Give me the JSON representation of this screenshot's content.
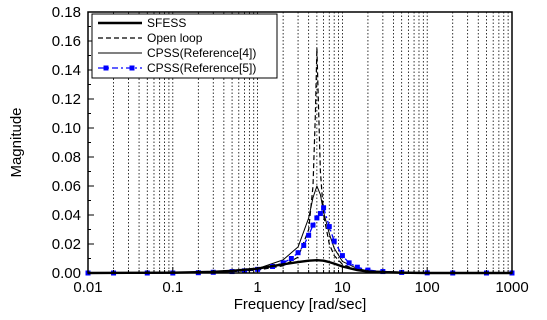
{
  "chart_data": {
    "type": "line",
    "xlabel": "Frequency [rad/sec]",
    "ylabel": "Magnitude",
    "x_scale": "log",
    "xlim": [
      0.01,
      1000
    ],
    "ylim": [
      0,
      0.18
    ],
    "x_ticks": [
      0.01,
      0.1,
      1,
      10,
      100,
      1000
    ],
    "x_tick_labels": [
      "0.01",
      "0.1",
      "1",
      "10",
      "100",
      "1000"
    ],
    "y_ticks": [
      0,
      0.02,
      0.04,
      0.06,
      0.08,
      0.1,
      0.12,
      0.14,
      0.16,
      0.18
    ],
    "y_tick_labels": [
      "0.00",
      "0.02",
      "0.04",
      "0.06",
      "0.08",
      "0.10",
      "0.12",
      "0.14",
      "0.16",
      "0.18"
    ],
    "grid": "vertical dotted at log decades",
    "legend_position": "top-left",
    "series": [
      {
        "name": "SFESS",
        "style": "thick-solid",
        "color": "#000000",
        "x": [
          0.01,
          0.1,
          0.3,
          0.5,
          1,
          2,
          3,
          4,
          5,
          6,
          7,
          8,
          10,
          15,
          20,
          50,
          100,
          1000
        ],
        "y": [
          0,
          0.0002,
          0.0008,
          0.0015,
          0.003,
          0.006,
          0.0075,
          0.0085,
          0.0088,
          0.0085,
          0.0075,
          0.0065,
          0.0045,
          0.002,
          0.001,
          0.0002,
          0,
          0
        ]
      },
      {
        "name": "Open loop",
        "style": "dashed",
        "color": "#000000",
        "x": [
          0.01,
          0.1,
          0.5,
          1,
          2,
          3,
          4,
          4.5,
          4.8,
          5,
          5.2,
          5.5,
          6,
          7,
          8,
          10,
          15,
          20,
          100,
          1000
        ],
        "y": [
          0,
          0,
          0.001,
          0.002,
          0.005,
          0.011,
          0.03,
          0.06,
          0.11,
          0.155,
          0.12,
          0.07,
          0.04,
          0.02,
          0.012,
          0.006,
          0.002,
          0.001,
          0,
          0
        ]
      },
      {
        "name": "CPSS(Reference[4])",
        "style": "thin-solid",
        "color": "#000000",
        "x": [
          0.01,
          0.1,
          0.5,
          1,
          2,
          3,
          4,
          4.5,
          5,
          5.5,
          6,
          7,
          8,
          10,
          15,
          20,
          100,
          1000
        ],
        "y": [
          0,
          0,
          0.001,
          0.003,
          0.009,
          0.018,
          0.038,
          0.052,
          0.06,
          0.054,
          0.042,
          0.027,
          0.017,
          0.008,
          0.003,
          0.0015,
          0,
          0
        ]
      },
      {
        "name": "CPSS(Reference[5])",
        "style": "blue-dash-dot-square",
        "color": "#0000ff",
        "x": [
          0.01,
          0.02,
          0.05,
          0.1,
          0.2,
          0.3,
          0.5,
          0.7,
          1,
          1.5,
          2,
          2.5,
          3,
          3.5,
          4,
          4.5,
          5,
          5.5,
          6,
          7,
          8,
          10,
          12,
          15,
          20,
          30,
          50,
          100,
          200,
          500,
          1000
        ],
        "y": [
          0,
          0,
          0,
          0,
          0.0002,
          0.0005,
          0.001,
          0.0015,
          0.0025,
          0.0045,
          0.007,
          0.01,
          0.014,
          0.019,
          0.026,
          0.033,
          0.038,
          0.041,
          0.045,
          0.032,
          0.022,
          0.012,
          0.007,
          0.004,
          0.002,
          0.001,
          0.0004,
          0.0001,
          0,
          0,
          0
        ]
      }
    ]
  }
}
